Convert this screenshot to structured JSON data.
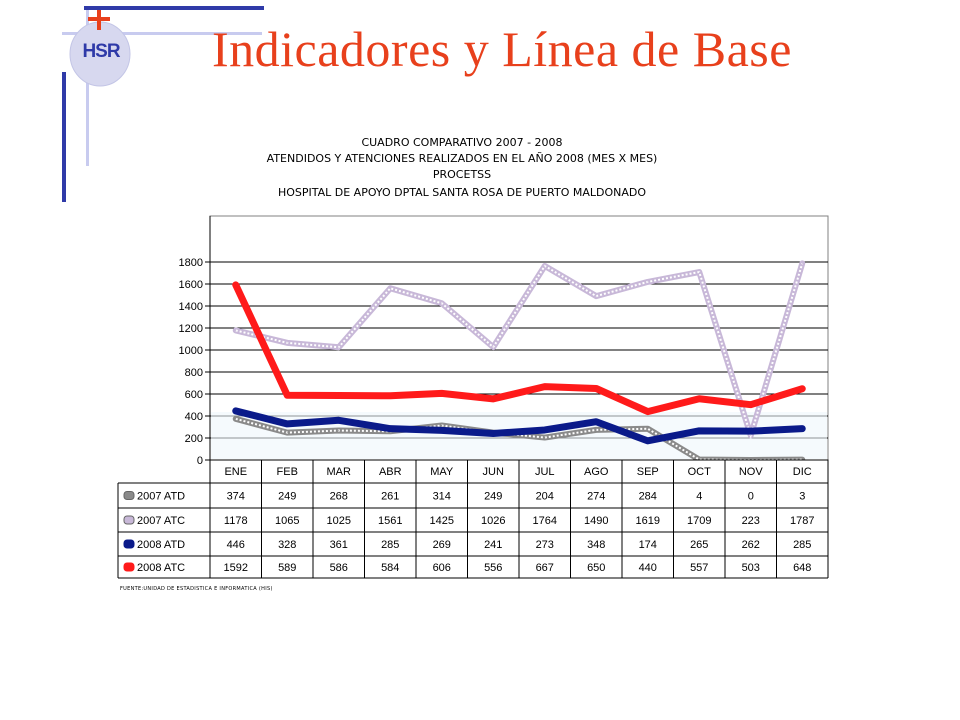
{
  "slide": {
    "title": "Indicadores y Línea de Base",
    "logo_text": "HSR"
  },
  "colors": {
    "title": "#e8401c",
    "accent_blue": "#2f3aa8",
    "accent_light_blue": "#c8cbef",
    "atd_2007": "#8a8a8a",
    "atc_2007": "#c8b8d8",
    "atd_2008": "#0a1a8a",
    "atc_2008": "#ff1a1a"
  },
  "chart_data": {
    "type": "line",
    "title": [
      "CUADRO COMPARATIVO 2007 - 2008",
      "ATENDIDOS Y ATENCIONES  REALIZADOS EN  EL AÑO 2008 (MES X MES)",
      "PROCETSS",
      "HOSPITAL DE APOYO DPTAL SANTA ROSA DE PUERTO MALDONADO"
    ],
    "categories": [
      "ENE",
      "FEB",
      "MAR",
      "ABR",
      "MAY",
      "JUN",
      "JUL",
      "AGO",
      "SEP",
      "OCT",
      "NOV",
      "DIC"
    ],
    "y_ticks": [
      "0",
      "200",
      "400",
      "600",
      "800",
      "1000",
      "1200",
      "1400",
      "1600",
      "1800"
    ],
    "ylim": [
      0,
      1800
    ],
    "grid": true,
    "legend": "table-below",
    "series": [
      {
        "name": "2007 ATD",
        "values": [
          374,
          249,
          268,
          261,
          314,
          249,
          204,
          274,
          284,
          4,
          0,
          3
        ]
      },
      {
        "name": "2007 ATC",
        "values": [
          1178,
          1065,
          1025,
          1561,
          1425,
          1026,
          1764,
          1490,
          1619,
          1709,
          223,
          1787
        ]
      },
      {
        "name": "2008 ATD",
        "values": [
          446,
          328,
          361,
          285,
          269,
          241,
          273,
          348,
          174,
          265,
          262,
          285
        ]
      },
      {
        "name": "2008 ATC",
        "values": [
          1592,
          589,
          586,
          584,
          606,
          556,
          667,
          650,
          440,
          557,
          503,
          648
        ]
      }
    ],
    "source": "FUENTE:UNIDAD DE ESTADISTICA E INFORMATICA (HIS)"
  }
}
